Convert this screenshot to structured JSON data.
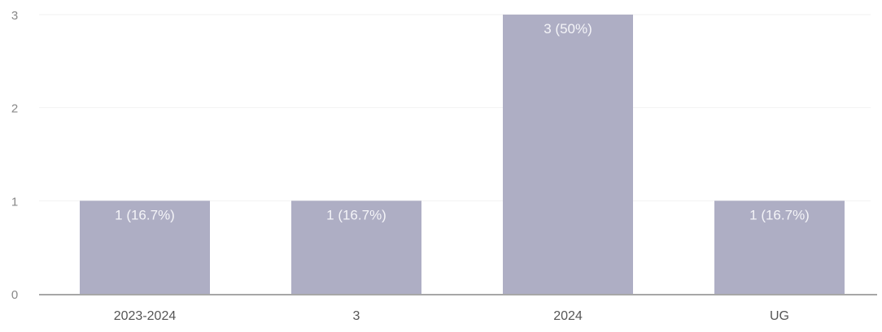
{
  "chart_data": {
    "type": "bar",
    "title": "",
    "xlabel": "",
    "ylabel": "",
    "categories": [
      "2023-2024",
      "3",
      "2024",
      "UG"
    ],
    "values": [
      1,
      1,
      3,
      1
    ],
    "data_labels": [
      "1 (16.7%)",
      "1 (16.7%)",
      "3 (50%)",
      "1 (16.7%)"
    ],
    "ylim": [
      0,
      3
    ],
    "yticks": [
      "0",
      "1",
      "2",
      "3"
    ],
    "grid": true,
    "legend": "none"
  },
  "colors": {
    "bar": "#aeaec4",
    "bar_label": "#f4f4f8",
    "axis_text": "#555555",
    "y_tick_text": "#888888",
    "baseline": "#8a8a8a",
    "grid": "#f2f2f2"
  }
}
